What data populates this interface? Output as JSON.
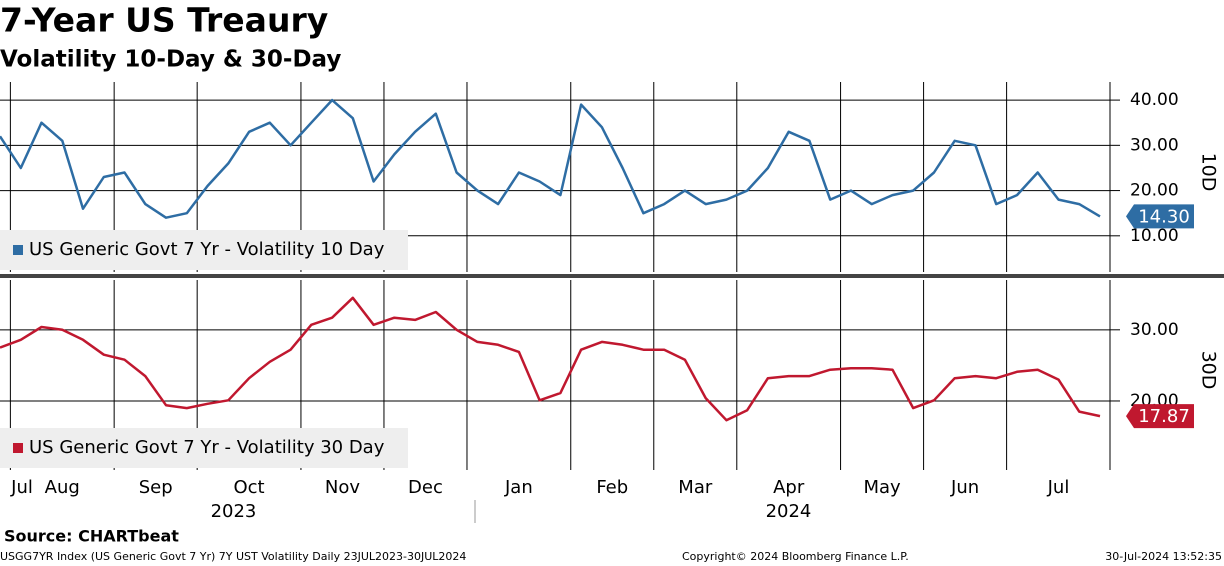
{
  "header": {
    "title": "7-Year US Treaury",
    "subtitle": "Volatility 10-Day & 30-Day"
  },
  "chart_data": [
    {
      "type": "line",
      "y_label": "10D",
      "series": [
        {
          "name": "US Generic Govt 7 Yr - Volatility 10 Day",
          "color": "#2e6da4",
          "values": [
            32,
            25,
            35,
            31,
            16,
            23,
            24,
            17,
            14,
            15,
            21,
            26,
            33,
            35,
            30,
            35,
            40,
            36,
            22,
            28,
            33,
            37,
            24,
            20,
            17,
            24,
            22,
            19,
            39,
            34,
            25,
            15,
            17,
            20,
            17,
            18,
            20,
            25,
            33,
            31,
            18,
            20,
            17,
            19,
            20,
            24,
            31,
            30,
            17,
            19,
            24,
            18,
            17,
            14.3
          ],
          "last_value_label": "14.30"
        }
      ],
      "ylim": [
        2,
        44
      ],
      "yticks": [
        {
          "value": 10,
          "label": "10.00"
        },
        {
          "value": 20,
          "label": "20.00"
        },
        {
          "value": 30,
          "label": "30.00"
        },
        {
          "value": 40,
          "label": "40.00"
        }
      ],
      "grid": true
    },
    {
      "type": "line",
      "y_label": "30D",
      "categories": [
        "Jul",
        "Aug",
        null,
        null,
        null,
        null,
        "Sep",
        null,
        null,
        null,
        "Oct",
        null,
        null,
        null,
        null,
        "Nov",
        null,
        null,
        null,
        "Dec",
        null,
        null,
        null,
        "Jan",
        null,
        null,
        null,
        null,
        "Feb",
        null,
        null,
        null,
        "Mar",
        null,
        null,
        null,
        "Apr",
        null,
        null,
        null,
        null,
        "May",
        null,
        null,
        null,
        "Jun",
        null,
        null,
        null,
        "Jul",
        null,
        null,
        null,
        null
      ],
      "years": [
        "2023",
        "2024"
      ],
      "series": [
        {
          "name": "US Generic Govt 7 Yr - Volatility 30 Day",
          "color": "#c0182f",
          "values": [
            27.5,
            28.6,
            30.4,
            30,
            28.6,
            26.5,
            25.8,
            23.5,
            19.4,
            19,
            19.6,
            20.1,
            23.2,
            25.5,
            27.2,
            30.7,
            31.7,
            34.5,
            30.7,
            31.7,
            31.4,
            32.5,
            30,
            28.3,
            27.9,
            26.9,
            20.1,
            21.1,
            27.2,
            28.3,
            27.9,
            27.2,
            27.2,
            25.8,
            20.4,
            17.3,
            18.7,
            23.2,
            23.5,
            23.5,
            24.4,
            24.6,
            24.6,
            24.4,
            19,
            20.1,
            23.2,
            23.5,
            23.2,
            24.1,
            24.4,
            23,
            18.5,
            17.87
          ],
          "last_value_label": "17.87"
        }
      ],
      "ylim": [
        10.3,
        37
      ],
      "yticks": [
        {
          "value": 20,
          "label": "20.00"
        },
        {
          "value": 30,
          "label": "30.00"
        }
      ],
      "grid": true
    }
  ],
  "source": "Source: CHARTbeat",
  "footer": {
    "left": "USGG7YR Index (US Generic Govt 7 Yr) 7Y UST Volatility  Daily 23JUL2023-30JUL2024",
    "center": "Copyright© 2024 Bloomberg Finance L.P.",
    "right": "30-Jul-2024 13:52:35"
  }
}
